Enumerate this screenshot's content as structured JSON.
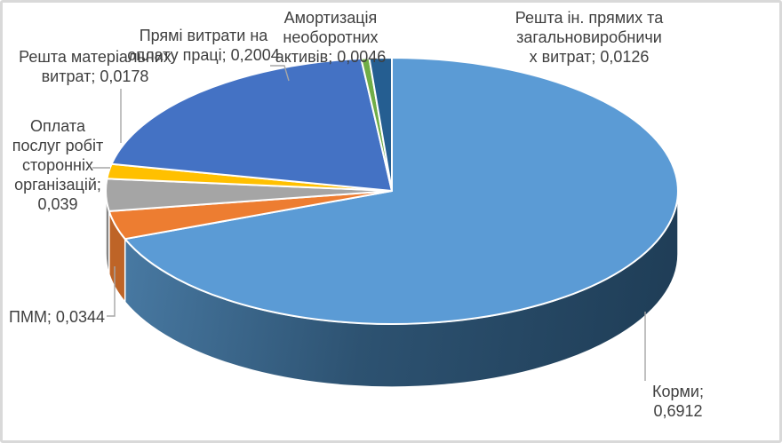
{
  "chart": {
    "background": "#FFFFFF",
    "frame_color": "#D9D9D9",
    "text_color": "#3F3F3F",
    "leader_color": "#A6A6A6"
  },
  "chart_data": {
    "type": "pie",
    "style": "3d-pie",
    "title": "",
    "legend": "none",
    "direction": "clockwise",
    "start_angle_deg": 0,
    "label_format": "category; value",
    "decimal_separator": ",",
    "slices": [
      {
        "id": "kormy",
        "label": "Корми",
        "value": 0.6912,
        "value_text": "0,6912",
        "display": "Корми; 0,6912",
        "color": "#5B9BD5"
      },
      {
        "id": "pmm",
        "label": "ПММ",
        "value": 0.0344,
        "value_text": "0,0344",
        "display": "ПММ; 0,0344",
        "color": "#ED7D31"
      },
      {
        "id": "oplata",
        "label": "Оплата послуг робіт сторонніх організацій",
        "value": 0.039,
        "value_text": "0,039",
        "display": "Оплата послуг робіт сторонніх організацій; 0,039",
        "color": "#A5A5A5"
      },
      {
        "id": "reshta_mat",
        "label": "Решта матеріальних витрат",
        "value": 0.0178,
        "value_text": "0,0178",
        "display": "Решта матеріальних витрат; 0,0178",
        "color": "#FFC000"
      },
      {
        "id": "priami",
        "label": "Прямі витрати на оплату праці",
        "value": 0.2004,
        "value_text": "0,2004",
        "display": "Прямі витрати на оплату праці; 0,2004",
        "color": "#4472C4"
      },
      {
        "id": "amort",
        "label": "Амортизація необоротних активів",
        "value": 0.0046,
        "value_text": "0,0046",
        "display": "Амортизація необоротних активів; 0,0046",
        "color": "#70AD47"
      },
      {
        "id": "reshta_in",
        "label": "Решта ін. прямих та загальновиробничих витрат",
        "value": 0.0126,
        "value_text": "0,0126",
        "display": "Решта ін. прямих та загальновиробничи х витрат; 0,0126",
        "color": "#255E91"
      }
    ]
  },
  "labels": {
    "amort": {
      "lines": [
        "Амортизація",
        "необоротних",
        "активів; 0,0046"
      ]
    },
    "reshta_in": {
      "lines": [
        "Решта ін. прямих та",
        "загальновиробничи",
        "х витрат; 0,0126"
      ]
    },
    "priami": {
      "lines": [
        "Прямі витрати на",
        "оплату праці; 0,2004"
      ]
    },
    "reshta_mat": {
      "lines": [
        "Решта матеріальних",
        "витрат; 0,0178"
      ]
    },
    "oplata": {
      "lines": [
        "Оплата",
        "послуг робіт",
        "сторонніх",
        "організацій;",
        "0,039"
      ]
    },
    "pmm": {
      "lines": [
        "ПММ; 0,0344"
      ]
    },
    "kormy": {
      "lines": [
        "Корми; 0,6912"
      ]
    }
  }
}
